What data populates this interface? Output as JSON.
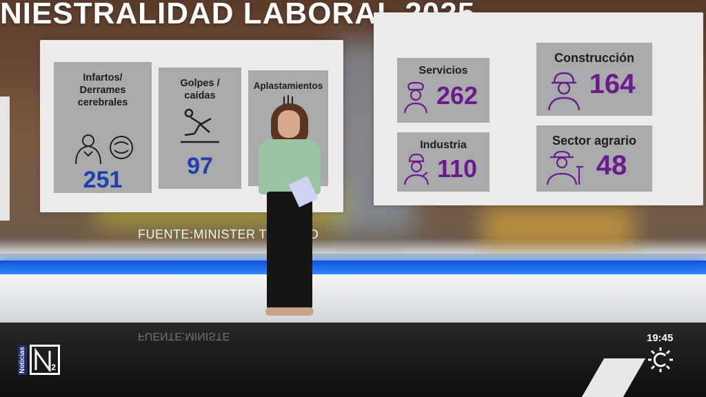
{
  "title": "NIESTRALIDAD LABORAL 2025",
  "source": "FUENTE:MINISTER   TRABAJO",
  "reflection": "FUENTE:MINISTE",
  "causes": [
    {
      "label": "Infartos/ Derrames cerebrales",
      "value": "251",
      "icon": "heart-brain-icon"
    },
    {
      "label": "Golpes / caídas",
      "value": "97",
      "icon": "falling-person-icon"
    },
    {
      "label": "Aplastamientos",
      "value": "",
      "icon": "crush-icon"
    }
  ],
  "sectors": [
    {
      "label": "Servicios",
      "value": "262",
      "icon": "chef-icon"
    },
    {
      "label": "Construcción",
      "value": "164",
      "icon": "hardhat-worker-icon"
    },
    {
      "label": "Industria",
      "value": "110",
      "icon": "mechanic-icon"
    },
    {
      "label": "Sector agrario",
      "value": "48",
      "icon": "farmer-icon"
    }
  ],
  "channel": {
    "vertical_label": "Noticias",
    "number": "2"
  },
  "clock": "19:45",
  "colors": {
    "cause_value": "#1f3fb0",
    "sector_value": "#6b1b8d",
    "studio_band": "#2e8cff"
  }
}
